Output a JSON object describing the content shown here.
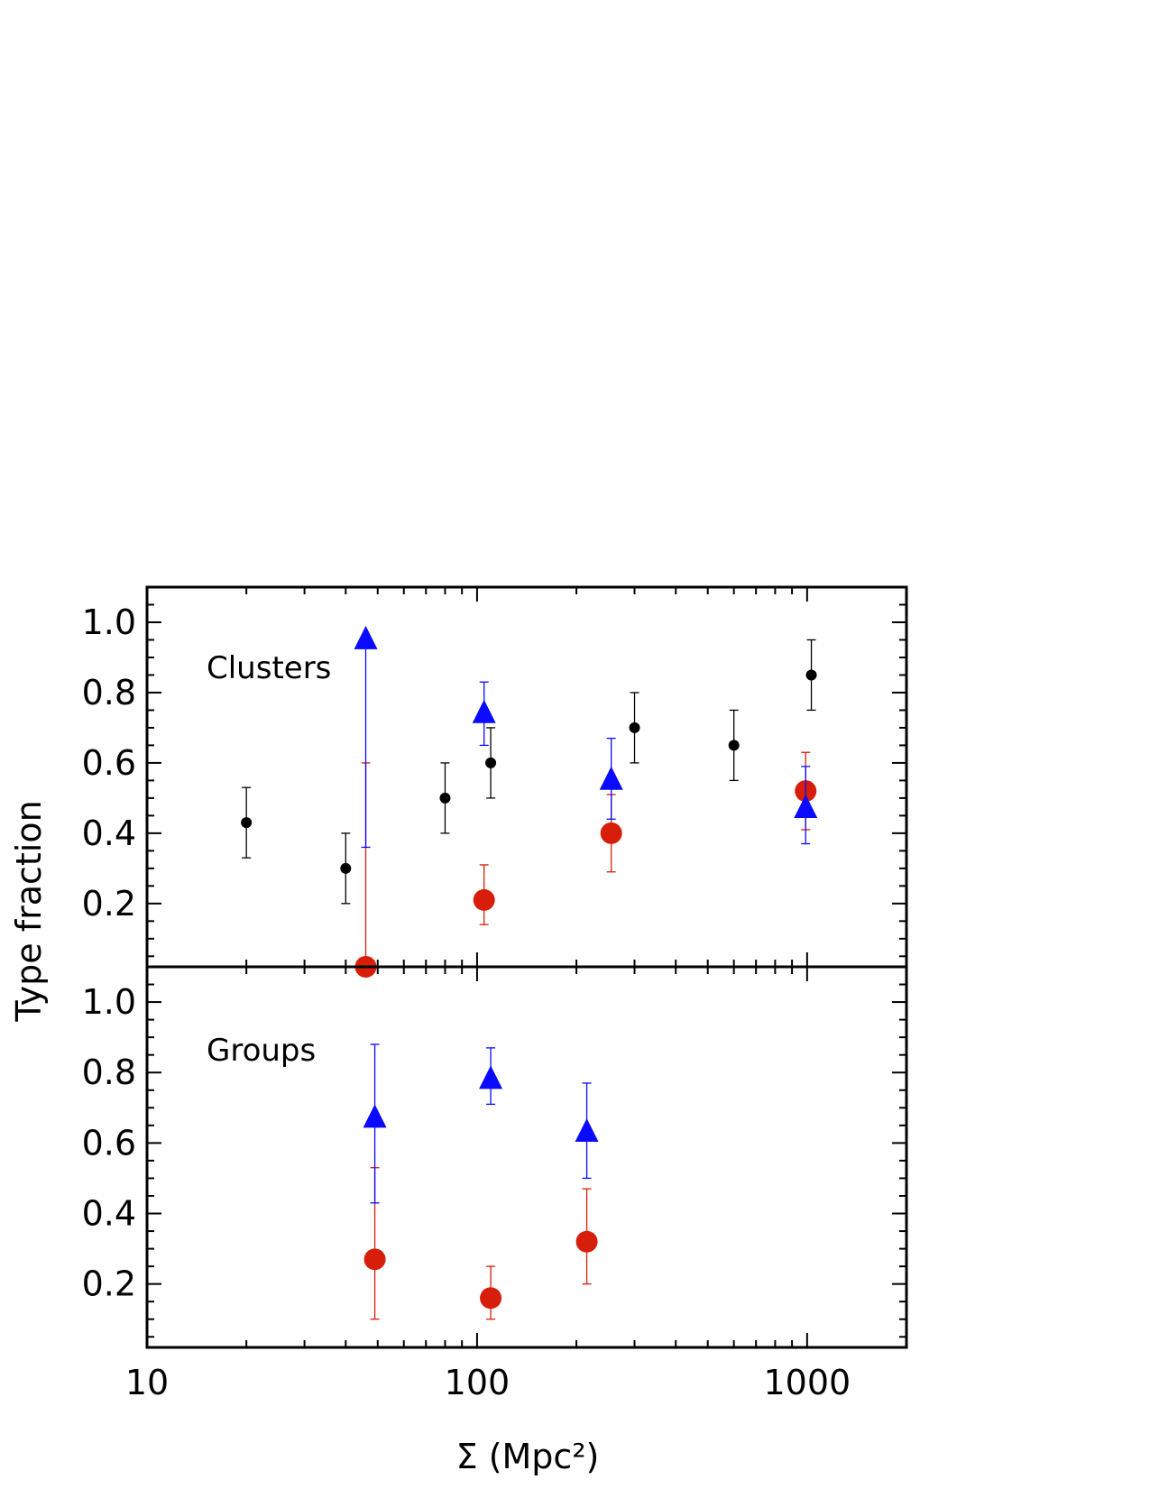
{
  "chart_data": {
    "type": "scatter",
    "xlabel": "Σ (Mpc²)",
    "ylabel": "Type fraction",
    "x_scale": "log",
    "xlim": [
      10,
      2000
    ],
    "x_ticks": [
      10,
      100,
      1000
    ],
    "x_tick_labels": [
      "10",
      "100",
      "1000"
    ],
    "colors": {
      "black_series": "#000000",
      "red_series": "#d61e0a",
      "blue_series": "#0a0aff"
    },
    "panels": [
      {
        "label": "Clusters",
        "ylim": [
          0.02,
          1.1
        ],
        "y_ticks": [
          0.2,
          0.4,
          0.6,
          0.8,
          1.0
        ],
        "y_tick_labels": [
          "0.2",
          "0.4",
          "0.6",
          "0.8",
          "1.0"
        ],
        "series": [
          {
            "marker": "small-dot",
            "color": "#000000",
            "points": [
              {
                "x": 20,
                "y": 0.43,
                "ylo": 0.33,
                "yhi": 0.53
              },
              {
                "x": 40,
                "y": 0.3,
                "ylo": 0.2,
                "yhi": 0.4
              },
              {
                "x": 80,
                "y": 0.5,
                "ylo": 0.4,
                "yhi": 0.6
              },
              {
                "x": 110,
                "y": 0.6,
                "ylo": 0.5,
                "yhi": 0.7
              },
              {
                "x": 300,
                "y": 0.7,
                "ylo": 0.6,
                "yhi": 0.8
              },
              {
                "x": 600,
                "y": 0.65,
                "ylo": 0.55,
                "yhi": 0.75
              },
              {
                "x": 1030,
                "y": 0.85,
                "ylo": 0.75,
                "yhi": 0.95
              }
            ]
          },
          {
            "marker": "circle",
            "color": "#d61e0a",
            "points": [
              {
                "x": 46,
                "y": 0.0,
                "ylo": 0.0,
                "yhi": 0.6
              },
              {
                "x": 105,
                "y": 0.21,
                "ylo": 0.14,
                "yhi": 0.31
              },
              {
                "x": 255,
                "y": 0.4,
                "ylo": 0.29,
                "yhi": 0.51
              },
              {
                "x": 990,
                "y": 0.52,
                "ylo": 0.41,
                "yhi": 0.63
              }
            ]
          },
          {
            "marker": "triangle",
            "color": "#0a0aff",
            "points": [
              {
                "x": 46,
                "y": 0.95,
                "ylo": 0.36,
                "yhi": 0.95
              },
              {
                "x": 105,
                "y": 0.74,
                "ylo": 0.65,
                "yhi": 0.83
              },
              {
                "x": 255,
                "y": 0.55,
                "ylo": 0.44,
                "yhi": 0.67
              },
              {
                "x": 990,
                "y": 0.47,
                "ylo": 0.37,
                "yhi": 0.59
              }
            ]
          }
        ]
      },
      {
        "label": "Groups",
        "ylim": [
          0.02,
          1.1
        ],
        "y_ticks": [
          0.2,
          0.4,
          0.6,
          0.8,
          1.0
        ],
        "y_tick_labels": [
          "0.2",
          "0.4",
          "0.6",
          "0.8",
          "1.0"
        ],
        "series": [
          {
            "marker": "circle",
            "color": "#d61e0a",
            "points": [
              {
                "x": 49,
                "y": 0.27,
                "ylo": 0.1,
                "yhi": 0.53
              },
              {
                "x": 110,
                "y": 0.16,
                "ylo": 0.1,
                "yhi": 0.25
              },
              {
                "x": 215,
                "y": 0.32,
                "ylo": 0.2,
                "yhi": 0.47
              }
            ]
          },
          {
            "marker": "triangle",
            "color": "#0a0aff",
            "points": [
              {
                "x": 49,
                "y": 0.67,
                "ylo": 0.43,
                "yhi": 0.88
              },
              {
                "x": 110,
                "y": 0.78,
                "ylo": 0.71,
                "yhi": 0.87
              },
              {
                "x": 215,
                "y": 0.63,
                "ylo": 0.5,
                "yhi": 0.77
              }
            ]
          }
        ]
      }
    ]
  }
}
